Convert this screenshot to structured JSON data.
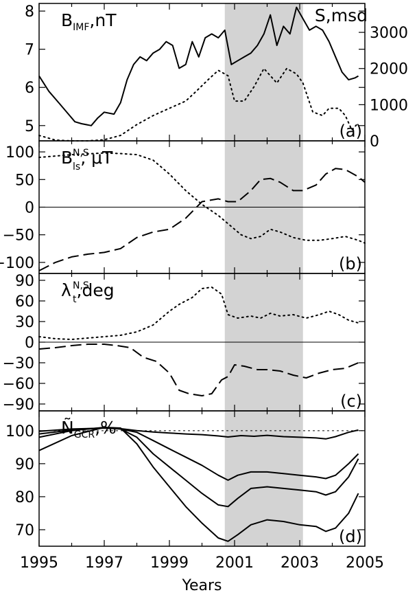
{
  "chart_data": [
    {
      "type": "line",
      "panel_label": "(a)",
      "x_range": [
        1995,
        2005
      ],
      "y_left_ticks": [
        "8",
        "7",
        "6",
        "5"
      ],
      "y_left_range": [
        4.6,
        8.2
      ],
      "y_right_ticks": [
        "3000",
        "2000",
        "1000",
        "0"
      ],
      "y_right_range": [
        0,
        3800
      ],
      "left_label": {
        "main": "B",
        "sub": "IMF",
        "suffix": ",nT"
      },
      "right_label": "S,msd",
      "series": [
        {
          "style": "solid",
          "axis": "left",
          "x": [
            1995,
            1995.3,
            1995.6,
            1995.9,
            1996.1,
            1996.3,
            1996.6,
            1996.8,
            1997.0,
            1997.3,
            1997.5,
            1997.7,
            1997.9,
            1998.1,
            1998.3,
            1998.5,
            1998.7,
            1998.9,
            1999.1,
            1999.3,
            1999.5,
            1999.7,
            1999.9,
            2000.1,
            2000.3,
            2000.5,
            2000.7,
            2000.9,
            2001.1,
            2001.3,
            2001.5,
            2001.7,
            2001.9,
            2002.1,
            2002.3,
            2002.5,
            2002.7,
            2002.9,
            2003.1,
            2003.3,
            2003.5,
            2003.7,
            2003.9,
            2004.1,
            2004.3,
            2004.5,
            2004.7,
            2004.8
          ],
          "y": [
            6.3,
            5.9,
            5.6,
            5.3,
            5.1,
            5.05,
            5.0,
            5.2,
            5.35,
            5.3,
            5.6,
            6.2,
            6.6,
            6.8,
            6.7,
            6.9,
            7.0,
            7.2,
            7.1,
            6.5,
            6.6,
            7.2,
            6.8,
            7.3,
            7.4,
            7.3,
            7.5,
            6.6,
            6.7,
            6.8,
            6.9,
            7.1,
            7.4,
            7.9,
            7.1,
            7.6,
            7.4,
            8.1,
            7.8,
            7.5,
            7.6,
            7.5,
            7.2,
            6.8,
            6.4,
            6.2,
            6.25,
            6.3
          ]
        },
        {
          "style": "dotted",
          "axis": "right",
          "x": [
            1995,
            1995.5,
            1996.0,
            1996.5,
            1997.0,
            1997.5,
            1998.0,
            1998.5,
            1999.0,
            1999.5,
            1999.8,
            2000.2,
            2000.5,
            2000.8,
            2001.0,
            2001.3,
            2001.6,
            2001.9,
            2002.1,
            2002.3,
            2002.6,
            2002.9,
            2003.1,
            2003.4,
            2003.7,
            2003.9,
            2004.2,
            2004.4,
            2004.6,
            2004.8
          ],
          "y": [
            150,
            20,
            0,
            0,
            30,
            150,
            450,
            700,
            900,
            1100,
            1350,
            1700,
            1950,
            1800,
            1100,
            1100,
            1500,
            2000,
            1800,
            1600,
            2000,
            1850,
            1600,
            800,
            700,
            900,
            900,
            700,
            300,
            500
          ]
        }
      ]
    },
    {
      "type": "line",
      "panel_label": "(b)",
      "x_range": [
        1995,
        2005
      ],
      "y_ticks": [
        "100",
        "50",
        "0",
        "-50",
        "-100"
      ],
      "y_range": [
        -120,
        120
      ],
      "zero_line": true,
      "left_label": {
        "main": "B",
        "sub": "ls",
        "sup": "N,S",
        "suffix": ",  μT"
      },
      "series": [
        {
          "style": "dotted",
          "x": [
            1995,
            1996,
            1997,
            1997.5,
            1998,
            1998.5,
            1999,
            1999.5,
            2000,
            2000.5,
            2000.8,
            2001.2,
            2001.5,
            2001.8,
            2002.1,
            2002.4,
            2002.8,
            2003.2,
            2003.6,
            2004.0,
            2004.4,
            2004.8,
            2005
          ],
          "y": [
            90,
            95,
            98,
            97,
            95,
            85,
            60,
            30,
            5,
            -15,
            -30,
            -50,
            -57,
            -53,
            -40,
            -45,
            -55,
            -60,
            -60,
            -57,
            -53,
            -60,
            -65
          ]
        },
        {
          "style": "dashed",
          "x": [
            1995,
            1995.5,
            1996,
            1996.5,
            1997,
            1997.5,
            1998,
            1998.5,
            1999,
            1999.5,
            2000,
            2000.5,
            2000.8,
            2001.1,
            2001.5,
            2001.8,
            2002.1,
            2002.4,
            2002.8,
            2003.1,
            2003.5,
            2003.8,
            2004.1,
            2004.4,
            2004.8,
            2005
          ],
          "y": [
            -115,
            -100,
            -90,
            -85,
            -82,
            -75,
            -55,
            -45,
            -40,
            -20,
            10,
            15,
            10,
            10,
            30,
            50,
            52,
            45,
            30,
            30,
            40,
            60,
            70,
            68,
            55,
            45
          ]
        }
      ]
    },
    {
      "type": "line",
      "panel_label": "(c)",
      "x_range": [
        1995,
        2005
      ],
      "y_ticks": [
        "90",
        "60",
        "30",
        "0",
        "-30",
        "-60",
        "-90"
      ],
      "y_range": [
        -100,
        100
      ],
      "zero_line": true,
      "left_label": {
        "main": "λ",
        "sub": "t",
        "sup": "N,S",
        "suffix": ",deg"
      },
      "series": [
        {
          "style": "dotted",
          "x": [
            1995,
            1995.5,
            1996,
            1996.5,
            1997,
            1997.5,
            1998,
            1998.5,
            1999,
            1999.3,
            1999.7,
            2000,
            2000.3,
            2000.6,
            2000.8,
            2001.1,
            2001.5,
            2001.8,
            2002.1,
            2002.4,
            2002.8,
            2003.2,
            2003.6,
            2003.9,
            2004.2,
            2004.5,
            2004.8
          ],
          "y": [
            8,
            5,
            4,
            6,
            8,
            10,
            15,
            25,
            45,
            55,
            65,
            78,
            80,
            70,
            40,
            35,
            38,
            35,
            42,
            38,
            40,
            35,
            40,
            45,
            40,
            32,
            28
          ]
        },
        {
          "style": "dashed",
          "x": [
            1995,
            1995.5,
            1996,
            1996.5,
            1997,
            1997.4,
            1997.8,
            1998.2,
            1998.6,
            1999.0,
            1999.3,
            1999.6,
            2000.0,
            2000.3,
            2000.6,
            2000.8,
            2001.0,
            2001.3,
            2001.7,
            2002.0,
            2002.4,
            2002.8,
            2003.2,
            2003.6,
            2004.0,
            2004.4,
            2004.8
          ],
          "y": [
            -10,
            -8,
            -5,
            -3,
            -3,
            -5,
            -8,
            -22,
            -28,
            -45,
            -70,
            -75,
            -78,
            -75,
            -55,
            -50,
            -33,
            -35,
            -40,
            -40,
            -42,
            -48,
            -52,
            -45,
            -40,
            -38,
            -30
          ]
        }
      ]
    },
    {
      "type": "line",
      "panel_label": "(d)",
      "x_range": [
        1995,
        2005
      ],
      "x_ticks": [
        "1995",
        "1997",
        "1999",
        "2001",
        "2003",
        "2005"
      ],
      "x_label": "Years",
      "y_ticks": [
        "100",
        "90",
        "80",
        "70"
      ],
      "y_range": [
        65,
        106
      ],
      "reference_line": 100,
      "left_label": {
        "main": "Ñ",
        "sub": "GCR",
        "suffix": ",%"
      },
      "series": [
        {
          "style": "solid",
          "x": [
            1995,
            1996,
            1997,
            1997.5,
            1998,
            1998.5,
            1999,
            1999.5,
            2000,
            2000.5,
            2000.8,
            2001.2,
            2001.6,
            2002,
            2002.5,
            2003,
            2003.5,
            2003.8,
            2004.1,
            2004.5,
            2004.8
          ],
          "y": [
            99.8,
            100.5,
            100.8,
            100.6,
            100,
            99.6,
            99.3,
            99,
            98.8,
            98.4,
            98.1,
            98.5,
            98.3,
            98.6,
            98.2,
            98,
            97.8,
            97.5,
            98.2,
            99.5,
            100.2
          ]
        },
        {
          "style": "solid",
          "x": [
            1995,
            1996,
            1997,
            1997.5,
            1998,
            1998.5,
            1999,
            1999.5,
            2000,
            2000.5,
            2000.8,
            2001.1,
            2001.5,
            2002,
            2002.5,
            2003,
            2003.5,
            2003.8,
            2004.1,
            2004.5,
            2004.8
          ],
          "y": [
            99,
            100.2,
            100.8,
            100.5,
            99.5,
            97,
            94.5,
            92,
            89.5,
            86.5,
            85,
            86.5,
            87.5,
            87.5,
            87,
            86.5,
            86,
            85.5,
            86.5,
            90,
            93
          ]
        },
        {
          "style": "solid",
          "x": [
            1995,
            1996,
            1997,
            1997.5,
            1998,
            1998.5,
            1999,
            1999.5,
            2000,
            2000.5,
            2000.8,
            2001.1,
            2001.5,
            2002,
            2002.5,
            2003,
            2003.5,
            2003.8,
            2004.1,
            2004.5,
            2004.8
          ],
          "y": [
            98,
            100,
            101,
            100.5,
            98,
            93,
            89,
            85,
            81,
            77.5,
            77,
            79.5,
            82.5,
            83,
            82.5,
            82,
            81.5,
            80.5,
            81.5,
            86,
            91.5
          ]
        },
        {
          "style": "solid",
          "x": [
            1995,
            1996,
            1997,
            1997.5,
            1998,
            1998.5,
            1999,
            1999.5,
            2000,
            2000.5,
            2000.8,
            2001.1,
            2001.5,
            2002,
            2002.5,
            2003,
            2003.5,
            2003.8,
            2004.1,
            2004.5,
            2004.8
          ],
          "y": [
            94,
            98.5,
            101,
            100.8,
            96,
            89,
            83,
            77,
            72,
            67.5,
            66.5,
            68.5,
            71.5,
            73,
            72.5,
            71.5,
            71,
            69.5,
            70.5,
            75,
            81
          ]
        }
      ]
    }
  ],
  "shaded_interval": [
    2000.7,
    2003.1
  ],
  "colors": {
    "shade": "#d3d3d3",
    "line": "#000000"
  }
}
